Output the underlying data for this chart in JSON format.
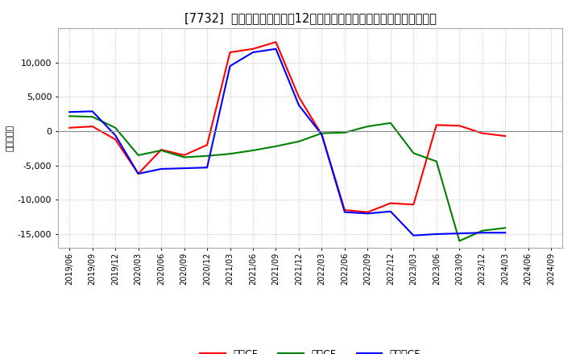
{
  "title": "[7732]  キャッシュフローの12か月移動合計の対前年同期増減額の推移",
  "ylabel": "（百万円）",
  "x_labels": [
    "2019/06",
    "2019/09",
    "2019/12",
    "2020/03",
    "2020/06",
    "2020/09",
    "2020/12",
    "2021/03",
    "2021/06",
    "2021/09",
    "2021/12",
    "2022/03",
    "2022/06",
    "2022/09",
    "2022/12",
    "2023/03",
    "2023/06",
    "2023/09",
    "2023/12",
    "2024/03",
    "2024/06",
    "2024/09"
  ],
  "eigyo_cf": [
    500,
    700,
    -1200,
    -6200,
    -2700,
    -3500,
    -2000,
    11500,
    12000,
    13000,
    5000,
    -500,
    -11500,
    -11800,
    -10500,
    -10700,
    900,
    800,
    -300,
    -700,
    null,
    null
  ],
  "toshi_cf": [
    2200,
    2100,
    500,
    -3500,
    -2800,
    -3800,
    -3600,
    -3300,
    -2800,
    -2200,
    -1500,
    -300,
    -200,
    700,
    1200,
    -3200,
    -4400,
    -16000,
    -14500,
    -14100,
    null,
    null
  ],
  "free_cf": [
    2800,
    2900,
    -600,
    -6200,
    -5500,
    -5400,
    -5300,
    9500,
    11500,
    12000,
    3800,
    -500,
    -11800,
    -12000,
    -11700,
    -15200,
    -15000,
    -14900,
    -14800,
    -14800,
    null,
    null
  ],
  "eigyo_color": "#ff0000",
  "toshi_color": "#008000",
  "free_color": "#0000ff",
  "ylim": [
    -17000,
    15000
  ],
  "yticks": [
    -15000,
    -10000,
    -5000,
    0,
    5000,
    10000
  ],
  "background_color": "#ffffff",
  "grid_color": "#bbbbbb",
  "title_fontsize": 10.5,
  "legend_labels": [
    "営業CF",
    "投資CF",
    "フリーCF"
  ]
}
